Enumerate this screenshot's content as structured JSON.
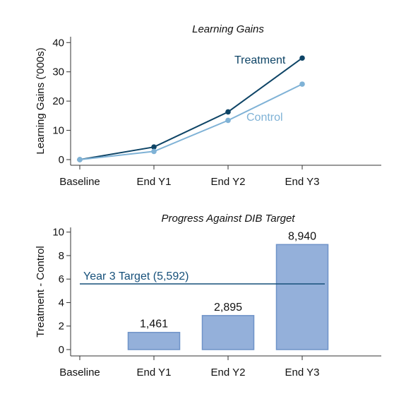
{
  "colors": {
    "treatment": "#0e4466",
    "control": "#7fb2d6",
    "bar_fill": "#94b0da",
    "bar_stroke": "#6f93c8",
    "target_line": "#16507a"
  },
  "chart_data": [
    {
      "type": "line",
      "title": "Learning Gains",
      "ylabel": "Learning Gains ('000s)",
      "xlabel": "",
      "categories": [
        "Baseline",
        "End Y1",
        "End Y2",
        "End Y3"
      ],
      "yticks": [
        "0",
        "10",
        "20",
        "30",
        "40"
      ],
      "ylim": [
        0,
        42
      ],
      "grid": false,
      "series": [
        {
          "name": "Treatment",
          "values": [
            0,
            4.3,
            16.3,
            34.7
          ]
        },
        {
          "name": "Control",
          "values": [
            0,
            2.8,
            13.4,
            25.8
          ]
        }
      ]
    },
    {
      "type": "bar",
      "title": "Progress Against DIB Target",
      "ylabel": "Treatment - Control",
      "xlabel": "",
      "categories": [
        "Baseline",
        "End Y1",
        "End Y2",
        "End Y3"
      ],
      "yticks": [
        "0",
        "2",
        "4",
        "6",
        "8",
        "10"
      ],
      "ylim": [
        0,
        10.4
      ],
      "grid": false,
      "values": [
        null,
        1.461,
        2.895,
        8.94
      ],
      "data_labels": [
        "",
        "1,461",
        "2,895",
        "8,940"
      ],
      "target": {
        "label": "Year 3 Target (5,592)",
        "value": 5.592
      }
    }
  ]
}
